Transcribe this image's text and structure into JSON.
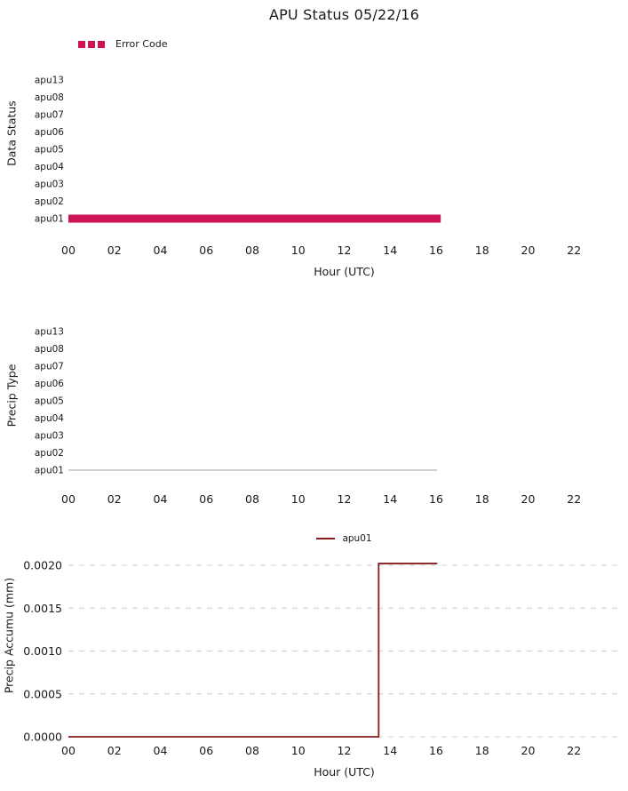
{
  "figure": {
    "title": "APU Status 05/22/16",
    "background": "#ffffff",
    "text_color": "#1a1a1a"
  },
  "chart_data": [
    {
      "id": "data-status",
      "type": "bar",
      "title": "APU Status 05/22/16",
      "ylabel": "Data Status",
      "xlabel": "Hour (UTC)",
      "legend": {
        "label": "Error Code",
        "color": "#ce1256",
        "marker": "squares",
        "position": "upper-left"
      },
      "categories": [
        "apu13",
        "apu08",
        "apu07",
        "apu06",
        "apu05",
        "apu04",
        "apu03",
        "apu02",
        "apu01"
      ],
      "xticks": [
        "00",
        "02",
        "04",
        "06",
        "08",
        "10",
        "12",
        "14",
        "16",
        "18",
        "20",
        "22"
      ],
      "xlim": [
        0,
        24
      ],
      "grid": false,
      "bars": [
        {
          "category": "apu01",
          "series": "Error Code",
          "start_hour": 0.0,
          "end_hour": 16.2,
          "color": "#ce1256"
        }
      ]
    },
    {
      "id": "precip-type",
      "type": "line",
      "title": "",
      "ylabel": "Precip Type",
      "xlabel": "",
      "categories": [
        "apu13",
        "apu08",
        "apu07",
        "apu06",
        "apu05",
        "apu04",
        "apu03",
        "apu02",
        "apu01"
      ],
      "xticks": [
        "00",
        "02",
        "04",
        "06",
        "08",
        "10",
        "12",
        "14",
        "16",
        "18",
        "20",
        "22"
      ],
      "xlim": [
        0,
        24
      ],
      "grid": false,
      "lines": [
        {
          "category": "apu01",
          "start_hour": 0.0,
          "end_hour": 16.05,
          "color": "#c8c8c8"
        }
      ]
    },
    {
      "id": "precip-accum",
      "type": "line",
      "title": "",
      "ylabel": "Precip Accumu (mm)",
      "xlabel": "Hour (UTC)",
      "legend": {
        "label": "apu01",
        "color": "#8b1a1a",
        "marker": "line",
        "position": "top-center"
      },
      "xticks": [
        "00",
        "02",
        "04",
        "06",
        "08",
        "10",
        "12",
        "14",
        "16",
        "18",
        "20",
        "22"
      ],
      "yticks": [
        "0.0000",
        "0.0005",
        "0.0010",
        "0.0015",
        "0.0020"
      ],
      "ytick_values": [
        0.0,
        0.0005,
        0.001,
        0.0015,
        0.002
      ],
      "xlim": [
        0,
        24
      ],
      "ylim": [
        0,
        0.00212
      ],
      "grid": "dashed-horizontal",
      "grid_color": "#cccccc",
      "series": [
        {
          "name": "apu01",
          "color": "#8b1a1a",
          "points": [
            [
              0.0,
              0.0
            ],
            [
              13.5,
              0.0
            ],
            [
              13.5,
              0.00202
            ],
            [
              16.05,
              0.00202
            ]
          ]
        }
      ]
    }
  ]
}
